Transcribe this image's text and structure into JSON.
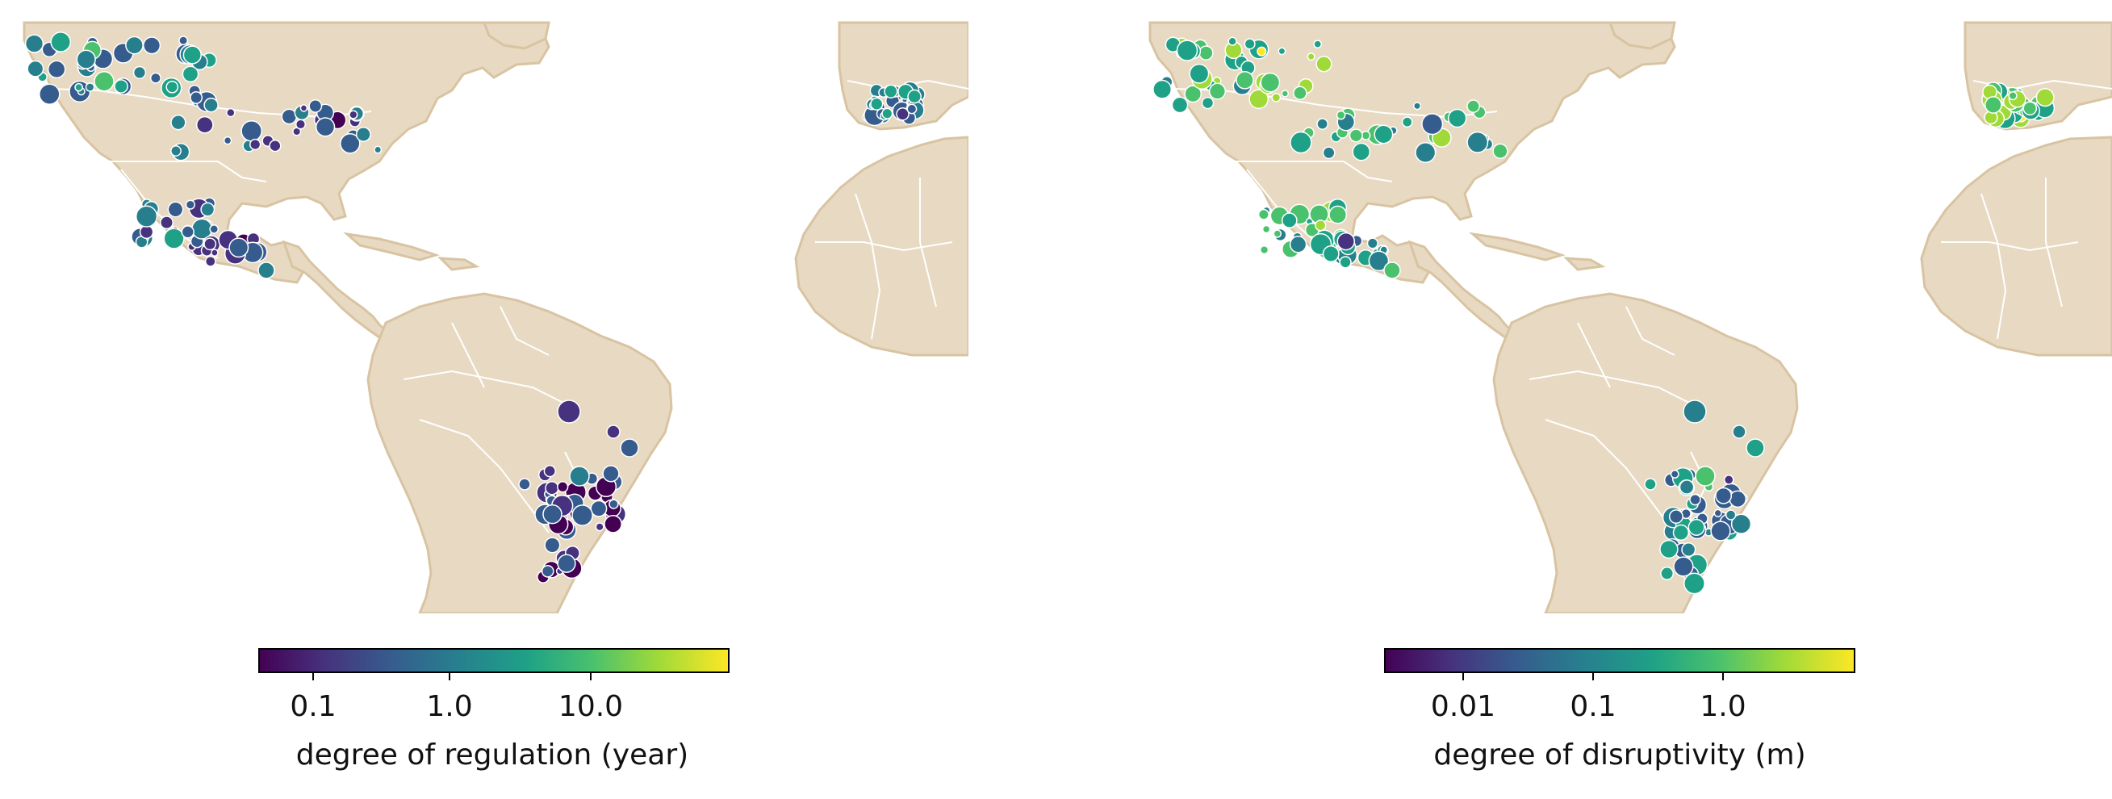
{
  "colors": {
    "land": "#e8d9c2",
    "land_border": "#d8c4a2",
    "country_lines": "#ffffff",
    "marker_edge": "#ffffff",
    "colormap": "viridis"
  },
  "maps": [
    {
      "id": "regulation",
      "colorbar": {
        "label": "degree of regulation (year)",
        "ticks": [
          "0.1",
          "1.0",
          "10.0"
        ],
        "scale": "log"
      }
    },
    {
      "id": "disruptivity",
      "colorbar": {
        "label": "degree of disruptivity (m)",
        "ticks": [
          "0.01",
          "0.1",
          "1.0"
        ],
        "scale": "log"
      }
    }
  ]
}
